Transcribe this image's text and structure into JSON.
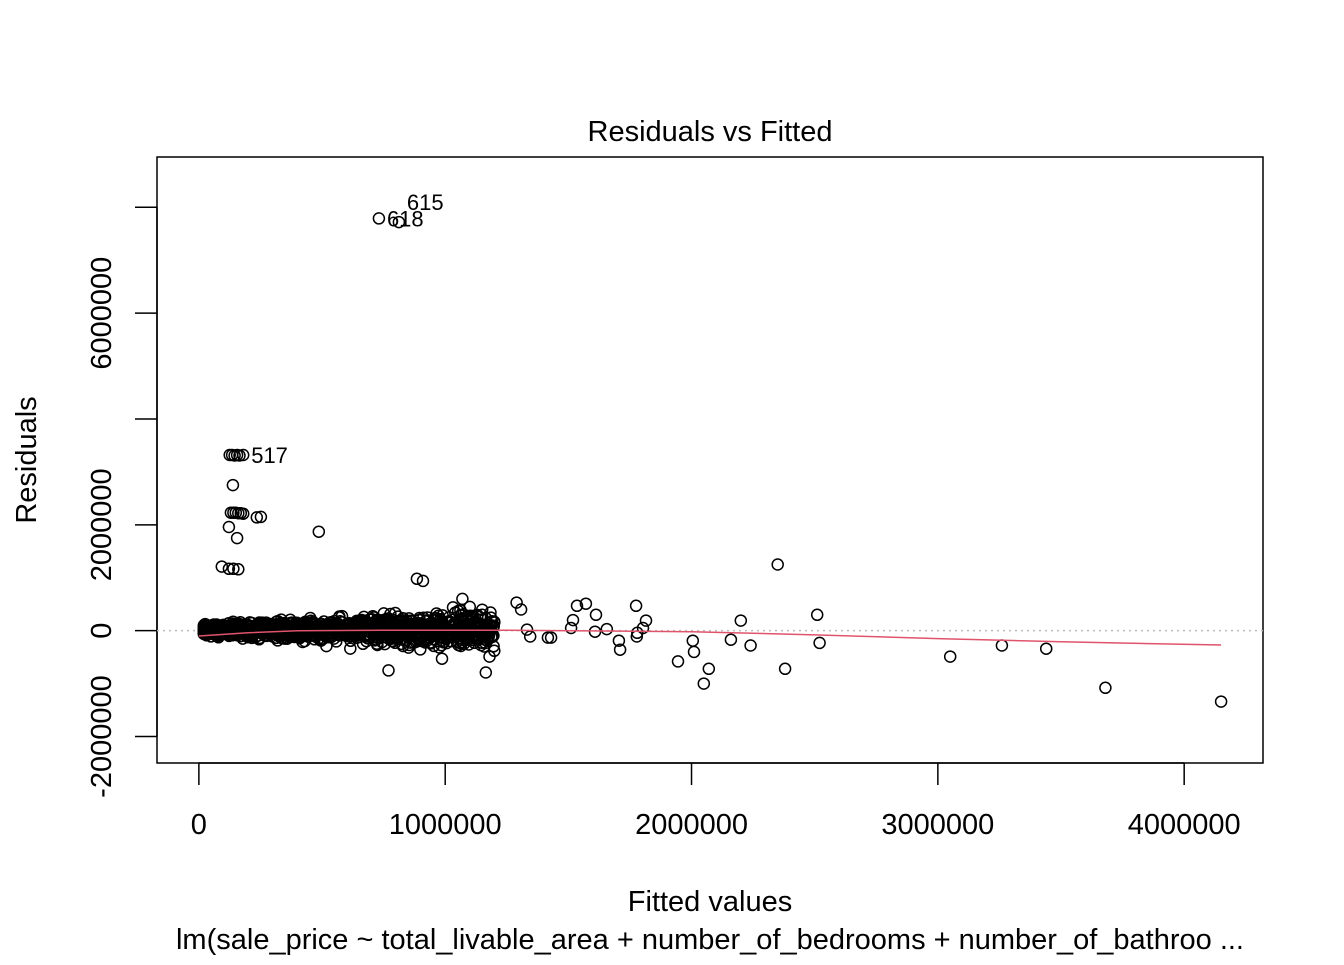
{
  "chart_data": {
    "type": "scatter",
    "title": "Residuals vs Fitted",
    "xlabel": "Fitted values",
    "ylabel": "Residuals",
    "subtitle": "lm(sale_price ~ total_livable_area + number_of_bedrooms + number_of_bathroo ...",
    "xlim": [
      -170000,
      4320000
    ],
    "ylim": [
      -2500000,
      8950000
    ],
    "x_ticks": [
      0,
      1000000,
      2000000,
      3000000,
      4000000
    ],
    "x_tick_labels": [
      "0",
      "1000000",
      "2000000",
      "3000000",
      "4000000"
    ],
    "y_ticks": [
      -2000000,
      0,
      2000000,
      4000000,
      6000000,
      8000000
    ],
    "y_tick_labels": [
      "-2000000",
      "0",
      "2000000",
      "",
      "6000000",
      ""
    ],
    "reference_line_y": 0,
    "grid": false,
    "colors": {
      "points": "#000000",
      "smooth": "#DF536B",
      "reference": "#BEBEBE"
    },
    "labeled_points": [
      {
        "label": "618",
        "x": 731000,
        "y": 7790000
      },
      {
        "label": "615",
        "x": 812000,
        "y": 7720000
      },
      {
        "label": "517",
        "x": 180000,
        "y": 3320000
      }
    ],
    "points": [
      [
        125000,
        3320000
      ],
      [
        135000,
        3320000
      ],
      [
        145000,
        3310000
      ],
      [
        155000,
        3320000
      ],
      [
        165000,
        3310000
      ],
      [
        138000,
        2750000
      ],
      [
        130000,
        2230000
      ],
      [
        140000,
        2230000
      ],
      [
        150000,
        2230000
      ],
      [
        160000,
        2220000
      ],
      [
        170000,
        2220000
      ],
      [
        180000,
        2210000
      ],
      [
        235000,
        2140000
      ],
      [
        252000,
        2150000
      ],
      [
        122000,
        1960000
      ],
      [
        155000,
        1750000
      ],
      [
        487000,
        1870000
      ],
      [
        93000,
        1210000
      ],
      [
        122000,
        1170000
      ],
      [
        140000,
        1170000
      ],
      [
        160000,
        1160000
      ],
      [
        885000,
        980000
      ],
      [
        910000,
        940000
      ],
      [
        2350000,
        1250000
      ],
      [
        2510000,
        300000
      ],
      [
        2520000,
        -230000
      ],
      [
        2380000,
        -720000
      ],
      [
        2200000,
        190000
      ],
      [
        2240000,
        -280000
      ],
      [
        2160000,
        -170000
      ],
      [
        2005000,
        -190000
      ],
      [
        2010000,
        -400000
      ],
      [
        1945000,
        -580000
      ],
      [
        2070000,
        -720000
      ],
      [
        2050000,
        -1000000
      ],
      [
        3050000,
        -490000
      ],
      [
        3260000,
        -280000
      ],
      [
        3440000,
        -340000
      ],
      [
        3680000,
        -1080000
      ],
      [
        4150000,
        -1340000
      ],
      [
        1775000,
        470000
      ],
      [
        1780000,
        -40000
      ],
      [
        1778000,
        -110000
      ],
      [
        1815000,
        190000
      ],
      [
        1803000,
        50000
      ],
      [
        1705000,
        -190000
      ],
      [
        1710000,
        -360000
      ],
      [
        1656000,
        30000
      ],
      [
        1608000,
        -20000
      ],
      [
        1612000,
        300000
      ],
      [
        1571000,
        510000
      ],
      [
        1535000,
        470000
      ],
      [
        1511000,
        50000
      ],
      [
        1519000,
        200000
      ],
      [
        1417000,
        -130000
      ],
      [
        1430000,
        -130000
      ],
      [
        1290000,
        530000
      ],
      [
        1308000,
        400000
      ],
      [
        1345000,
        -110000
      ],
      [
        1332000,
        20000
      ],
      [
        1180000,
        -490000
      ],
      [
        1165000,
        -790000
      ],
      [
        770000,
        -750000
      ],
      [
        987000,
        -530000
      ],
      [
        1150000,
        300000
      ],
      [
        1190000,
        180000
      ],
      [
        1070000,
        600000
      ],
      [
        1100000,
        450000
      ]
    ],
    "dense_cluster": {
      "x_range": [
        20000,
        1200000
      ],
      "residual_sd": 150000,
      "count": 1400
    },
    "smooth_line": {
      "x": [
        0,
        200000,
        400000,
        800000,
        1200000,
        2000000,
        2500000,
        3000000,
        3500000,
        4150000
      ],
      "y": [
        -100000,
        -40000,
        0,
        10000,
        10000,
        -20000,
        -80000,
        -150000,
        -210000,
        -270000
      ]
    }
  }
}
